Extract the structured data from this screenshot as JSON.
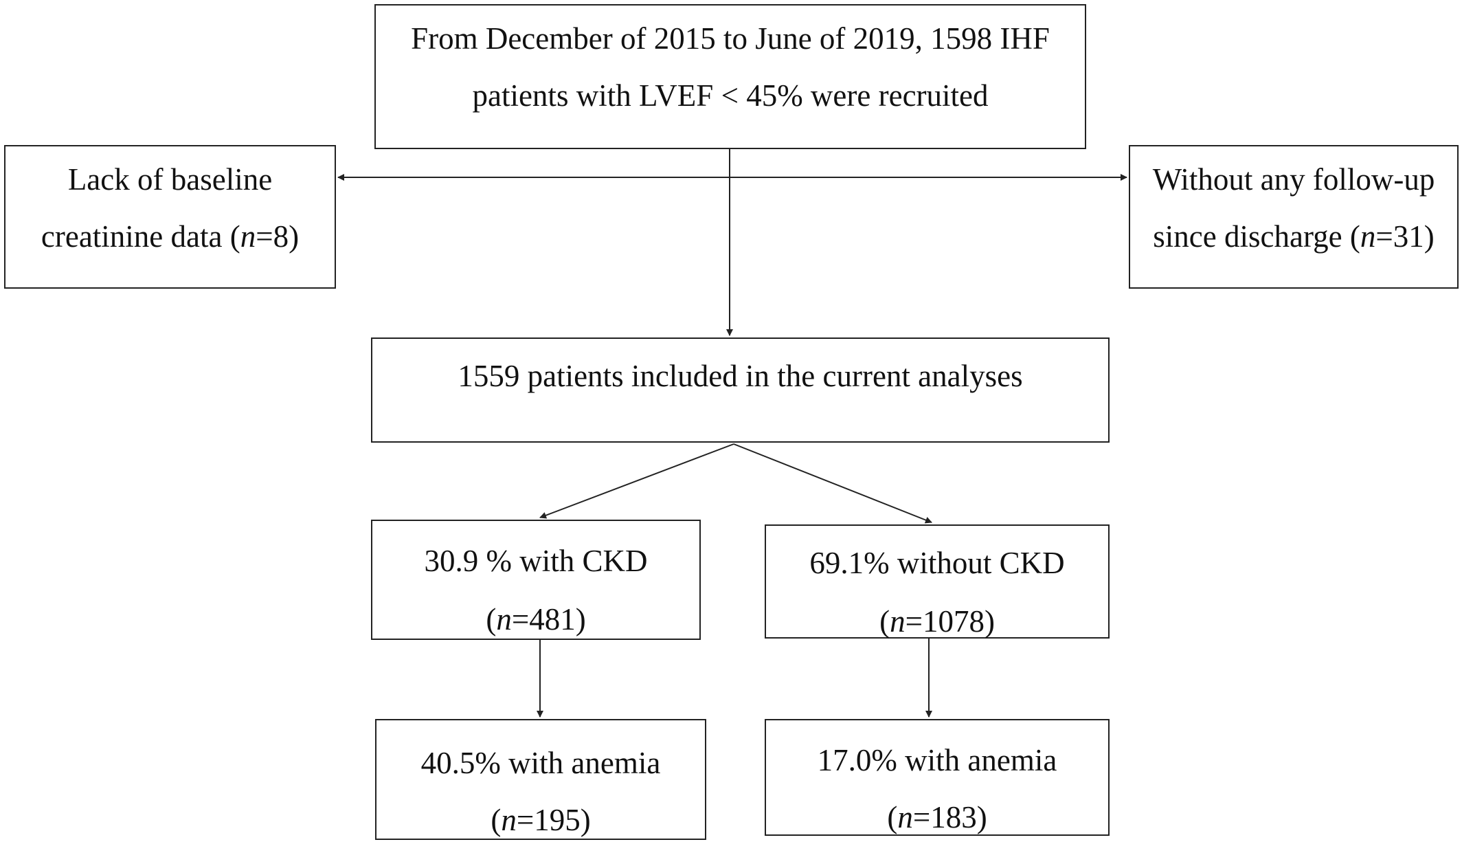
{
  "boxes": {
    "recruited": {
      "line1": "From December of 2015 to June of 2019, 1598 IHF",
      "line2": "patients with LVEF < 45% were recruited"
    },
    "excluded_left": {
      "line1": "Lack of baseline",
      "line2_prefix": "creatinine data (",
      "n_symbol": "n",
      "line2_suffix": "=8)"
    },
    "excluded_right": {
      "line1": "Without any follow-up",
      "line2_prefix": "since discharge (",
      "n_symbol": "n",
      "line2_suffix": "=31)"
    },
    "included": {
      "line1": "1559 patients included in the current analyses"
    },
    "with_ckd": {
      "line1": "30.9 % with CKD",
      "line2_prefix": "(",
      "n_symbol": "n",
      "line2_suffix": "=481)"
    },
    "without_ckd": {
      "line1": "69.1% without CKD",
      "line2_prefix": "(",
      "n_symbol": "n",
      "line2_suffix": "=1078)"
    },
    "anemia_ckd": {
      "line1": "40.5% with anemia",
      "line2_prefix": "(",
      "n_symbol": "n",
      "line2_suffix": "=195)"
    },
    "anemia_no_ckd": {
      "line1": "17.0% with anemia",
      "line2_prefix": "(",
      "n_symbol": "n",
      "line2_suffix": "=183)"
    }
  },
  "colors": {
    "stroke": "#222222",
    "text": "#111111",
    "background": "#ffffff"
  }
}
